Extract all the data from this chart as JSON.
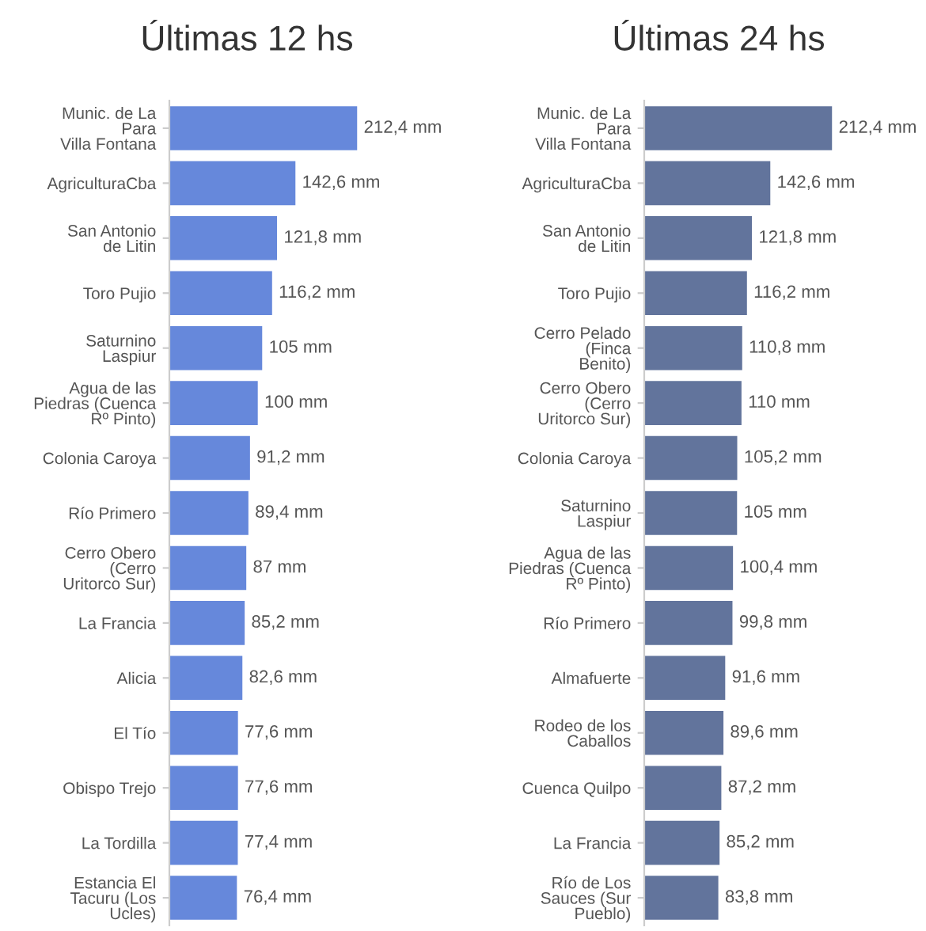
{
  "chart_data": [
    {
      "type": "bar",
      "orientation": "horizontal",
      "title": "Últimas 12 hs",
      "color": "#6688db",
      "tick_labels": "y",
      "categories": [
        "Munic. de La\nPara\nVilla Fontana",
        "AgriculturaCba",
        "San Antonio\nde Litin",
        "Toro Pujio",
        "Saturnino\nLaspiur",
        "Agua de las\nPiedras (Cuenca\nRº Pinto)",
        "Colonia Caroya",
        "Río Primero",
        "Cerro Obero\n(Cerro\nUritorco Sur)",
        "La Francia",
        "Alicia",
        "El Tío",
        "Obispo Trejo",
        "La Tordilla",
        "Estancia El\nTacuru (Los\nUcles)"
      ],
      "values": [
        212.4,
        142.6,
        121.8,
        116.2,
        105,
        100,
        91.2,
        89.4,
        87,
        85.2,
        82.6,
        77.6,
        77.6,
        77.4,
        76.4
      ],
      "value_labels": [
        "212,4 mm",
        "142,6 mm",
        "121,8 mm",
        "116,2 mm",
        "105 mm",
        "100 mm",
        "91,2 mm",
        "89,4 mm",
        "87 mm",
        "85,2 mm",
        "82,6 mm",
        "77,6 mm",
        "77,6 mm",
        "77,4 mm",
        "76,4 mm"
      ]
    },
    {
      "type": "bar",
      "orientation": "horizontal",
      "title": "Últimas 24 hs",
      "color": "#62749c",
      "tick_labels": "y",
      "categories": [
        "Munic. de La\nPara\nVilla Fontana",
        "AgriculturaCba",
        "San Antonio\nde Litin",
        "Toro Pujio",
        "Cerro Pelado\n(Finca\nBenito)",
        "Cerro Obero\n(Cerro\nUritorco Sur)",
        "Colonia Caroya",
        "Saturnino\nLaspiur",
        "Agua de las\nPiedras (Cuenca\nRº Pinto)",
        "Río Primero",
        "Almafuerte",
        "Rodeo de los\nCaballos",
        "Cuenca Quilpo",
        "La Francia",
        "Río de Los\nSauces (Sur\nPueblo)"
      ],
      "values": [
        212.4,
        142.6,
        121.8,
        116.2,
        110.8,
        110,
        105.2,
        105,
        100.4,
        99.8,
        91.6,
        89.6,
        87.2,
        85.2,
        83.8
      ],
      "value_labels": [
        "212,4 mm",
        "142,6 mm",
        "121,8 mm",
        "116,2 mm",
        "110,8 mm",
        "110 mm",
        "105,2 mm",
        "105 mm",
        "100,4 mm",
        "99,8 mm",
        "91,6 mm",
        "89,6 mm",
        "87,2 mm",
        "85,2 mm",
        "83,8 mm"
      ]
    }
  ]
}
